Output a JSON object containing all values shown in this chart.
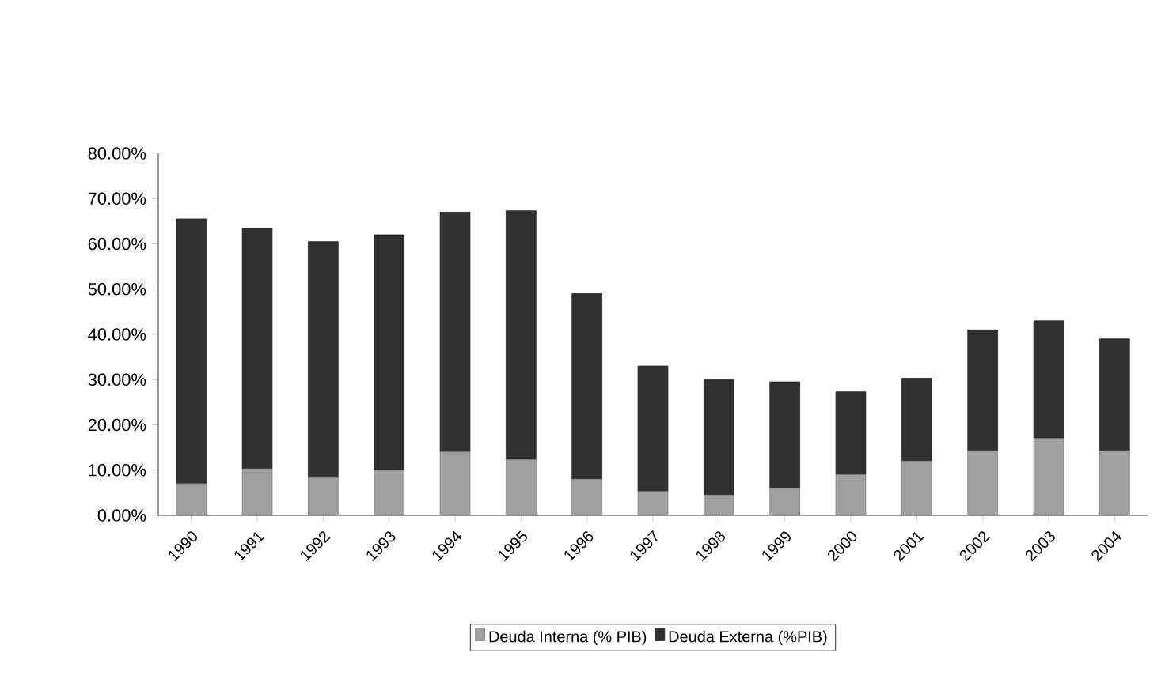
{
  "chart_data": {
    "type": "bar",
    "stacked": true,
    "categories": [
      "1990",
      "1991",
      "1992",
      "1993",
      "1994",
      "1995",
      "1996",
      "1997",
      "1998",
      "1999",
      "2000",
      "2001",
      "2002",
      "2003",
      "2004"
    ],
    "series": [
      {
        "name": "Deuda Interna (% PIB)",
        "color": "#a0a0a0",
        "values": [
          7,
          10.3,
          8.3,
          10,
          14,
          12.3,
          8,
          5.3,
          4.5,
          6,
          9,
          12,
          14.3,
          17,
          14.3
        ]
      },
      {
        "name": "Deuda Externa (%PIB)",
        "color": "#303030",
        "values": [
          58.5,
          53.2,
          52.2,
          52,
          53,
          55,
          41,
          27.7,
          25.5,
          23.5,
          18.3,
          18.3,
          26.7,
          26,
          24.7
        ]
      }
    ],
    "ylim": [
      0,
      80
    ],
    "yticks": [
      {
        "value": 0,
        "label": "0.00%"
      },
      {
        "value": 10,
        "label": "10.00%"
      },
      {
        "value": 20,
        "label": "20.00%"
      },
      {
        "value": 30,
        "label": "30.00%"
      },
      {
        "value": 40,
        "label": "40.00%"
      },
      {
        "value": 50,
        "label": "50.00%"
      },
      {
        "value": 60,
        "label": "60.00%"
      },
      {
        "value": 70,
        "label": "70.00%"
      },
      {
        "value": 80,
        "label": "80.00%"
      }
    ],
    "legend": "bottom",
    "grid": false
  }
}
